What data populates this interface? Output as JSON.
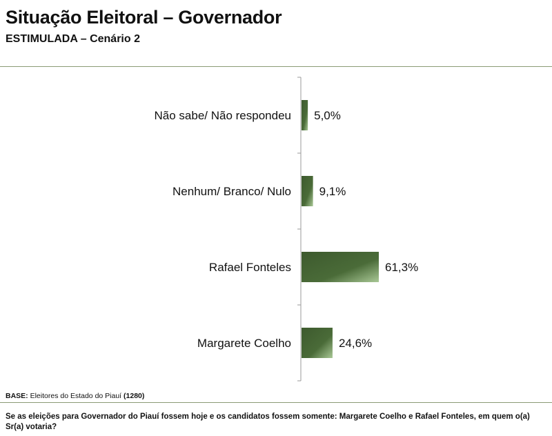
{
  "header": {
    "title": "Situação Eleitoral – Governador",
    "subtitle": "ESTIMULADA – Cenário 2"
  },
  "footer": {
    "base_label": "BASE:",
    "base_text": "Eleitores do Estado do Piauí",
    "base_count": "(1280)",
    "question": "Se as eleições para Governador do Piauí fossem hoje e os candidatos fossem somente: Margarete Coelho e Rafael Fonteles, em quem o(a) Sr(a) votaria?"
  },
  "colors": {
    "bar_dark": "#3d5a2e",
    "bar_light": "#9fc08c",
    "rule": "#8a9a74"
  },
  "chart_data": {
    "type": "bar",
    "orientation": "horizontal",
    "categories": [
      "Não sabe/ Não respondeu",
      "Nenhum/ Branco/ Nulo",
      "Rafael Fonteles",
      "Margarete Coelho"
    ],
    "values": [
      5.0,
      9.1,
      61.3,
      24.6
    ],
    "value_labels": [
      "5,0%",
      "9,1%",
      "61,3%",
      "24,6%"
    ],
    "unit": "%",
    "grid": false
  }
}
